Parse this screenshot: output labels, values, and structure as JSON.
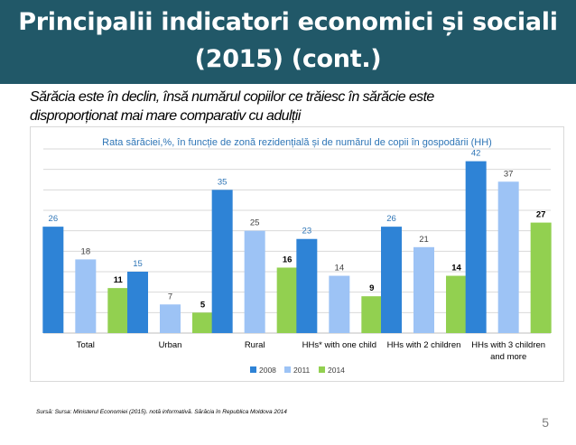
{
  "slide": {
    "title_line1": "Principalii indicatori economici și sociali",
    "title_line2": "(2015) (cont.)",
    "subtitle_line1": "Sărăcia este în declin, însă numărul copiilor ce trăiesc în sărăcie este",
    "subtitle_line2": "disproporționat mai mare comparativ cu adulții",
    "source": "Sursă: Sursa: Ministerul Economiei (2015). notă informativă. Sărăcia în Republica Moldova 2014",
    "page_number": "5"
  },
  "chart_data": {
    "type": "bar",
    "title": "Rata sărăciei,%, în funcție de zonă rezidențială și de numărul de copii în gospodării (HH)",
    "categories": [
      "Total",
      "Urban",
      "Rural",
      "HHs* with one child",
      "HHs with 2 children",
      "HHs with 3 children|and more"
    ],
    "series": [
      {
        "name": "2008",
        "values": [
          26,
          15,
          35,
          23,
          26,
          42
        ],
        "color": "#2e83d6",
        "label_color": "#2e75b6",
        "label_bold": false
      },
      {
        "name": "2011",
        "values": [
          18,
          7,
          25,
          14,
          21,
          37
        ],
        "color": "#9dc3f5",
        "label_color": "#404040",
        "label_bold": false
      },
      {
        "name": "2014",
        "values": [
          11,
          5,
          16,
          9,
          14,
          27
        ],
        "color": "#92d050",
        "label_color": "#000000",
        "label_bold": true
      }
    ],
    "ylim": [
      0,
      45
    ],
    "grid": true,
    "legend": "bottom"
  }
}
